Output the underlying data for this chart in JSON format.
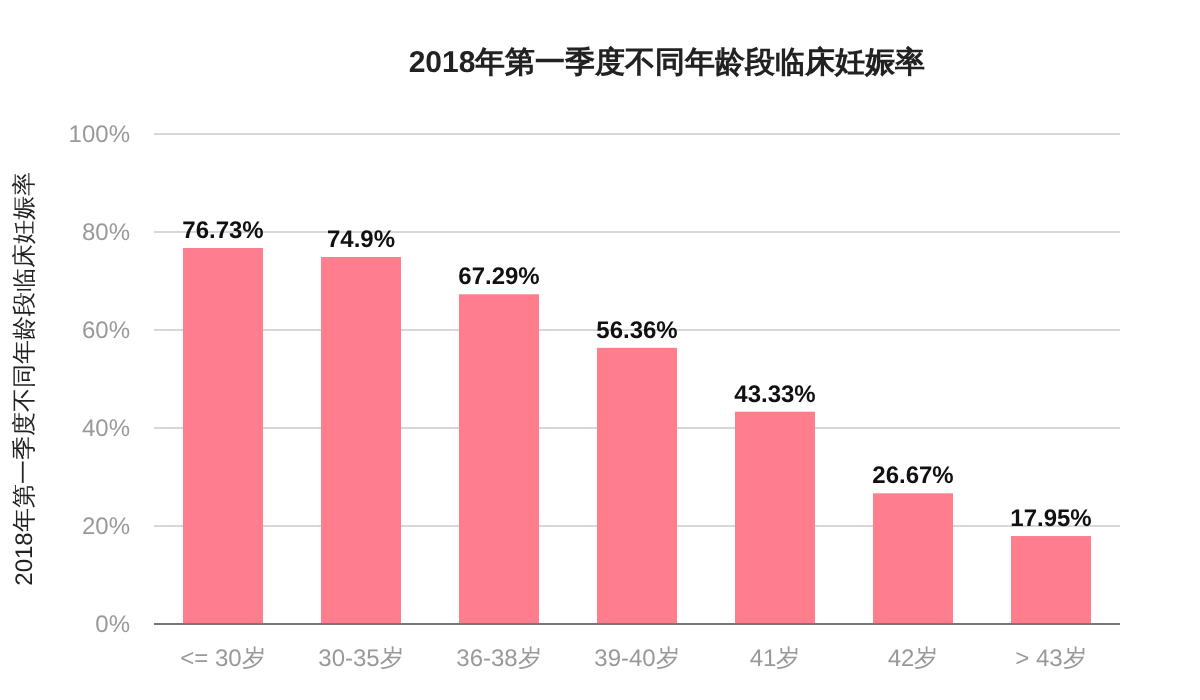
{
  "chart_data": {
    "type": "bar",
    "title": "2018年第一季度不同年龄段临床妊娠率",
    "ylabel": "2018年第一季度不同年龄段临床妊娠率",
    "categories": [
      "<= 30岁",
      "30-35岁",
      "36-38岁",
      "39-40岁",
      "41岁",
      "42岁",
      "> 43岁"
    ],
    "values": [
      76.73,
      74.9,
      67.29,
      56.36,
      43.33,
      26.67,
      17.95
    ],
    "value_labels": [
      "76.73%",
      "74.9%",
      "67.29%",
      "56.36%",
      "43.33%",
      "26.67%",
      "17.95%"
    ],
    "color": "#fe7e8e",
    "ylim": [
      0,
      100
    ],
    "yticks": [
      {
        "value": 0,
        "label": "0%"
      },
      {
        "value": 20,
        "label": "20%"
      },
      {
        "value": 40,
        "label": "40%"
      },
      {
        "value": 60,
        "label": "60%"
      },
      {
        "value": 80,
        "label": "80%"
      },
      {
        "value": 100,
        "label": "100%"
      }
    ],
    "grid": "y"
  }
}
